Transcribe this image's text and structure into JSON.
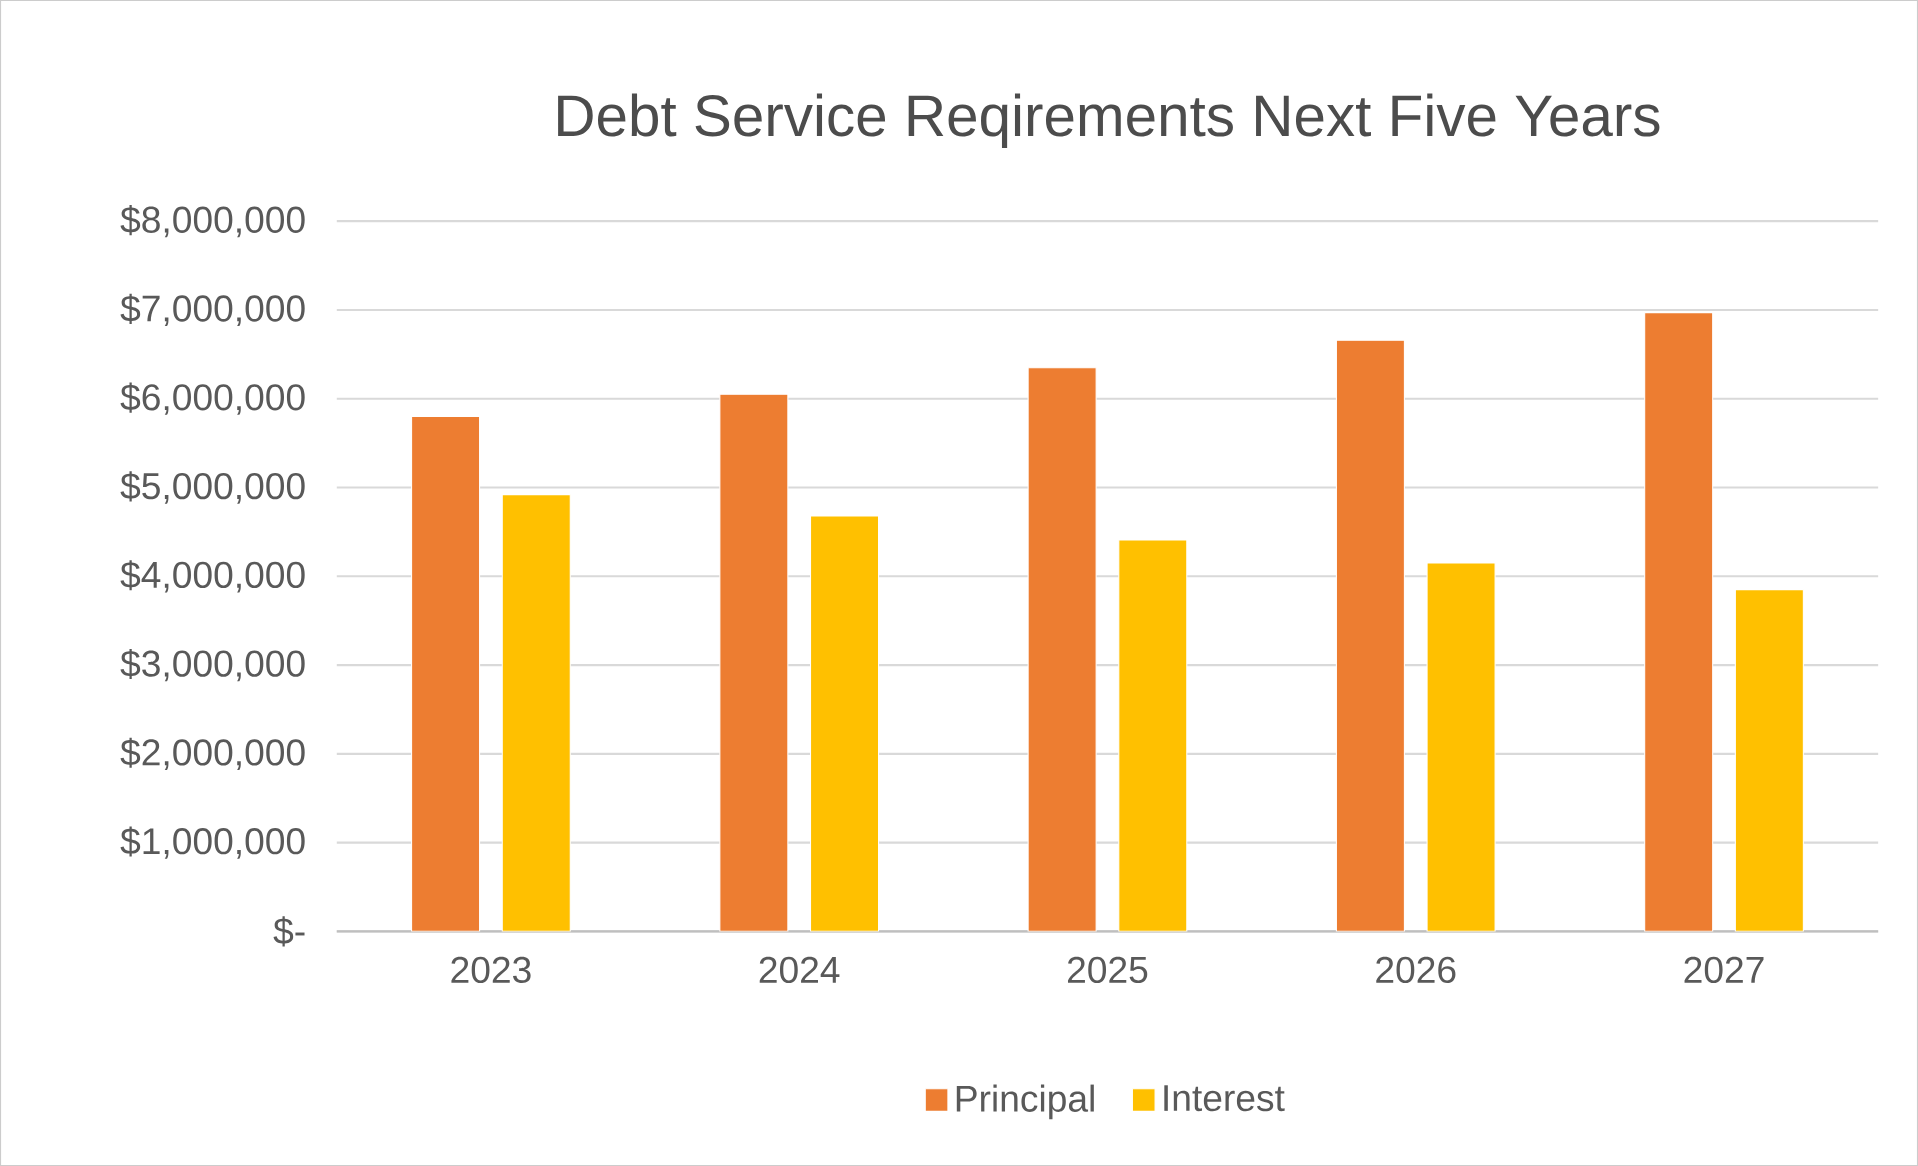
{
  "chart_data": {
    "type": "bar",
    "title": "Debt Service Reqirements Next Five Years",
    "categories": [
      "2023",
      "2024",
      "2025",
      "2026",
      "2027"
    ],
    "series": [
      {
        "name": "Principal",
        "color": "#ed7d31",
        "values": [
          5800000,
          6050000,
          6350000,
          6660000,
          6970000
        ]
      },
      {
        "name": "Interest",
        "color": "#ffc000",
        "values": [
          4920000,
          4680000,
          4410000,
          4150000,
          3850000
        ]
      }
    ],
    "ylim": [
      0,
      8000000
    ],
    "yticks": [
      {
        "value": 0,
        "label": "$-"
      },
      {
        "value": 1000000,
        "label": "$1,000,000"
      },
      {
        "value": 2000000,
        "label": "$2,000,000"
      },
      {
        "value": 3000000,
        "label": "$3,000,000"
      },
      {
        "value": 4000000,
        "label": "$4,000,000"
      },
      {
        "value": 5000000,
        "label": "$5,000,000"
      },
      {
        "value": 6000000,
        "label": "$6,000,000"
      },
      {
        "value": 7000000,
        "label": "$7,000,000"
      },
      {
        "value": 8000000,
        "label": "$8,000,000"
      }
    ],
    "grid": "y",
    "legend": "bottom"
  }
}
